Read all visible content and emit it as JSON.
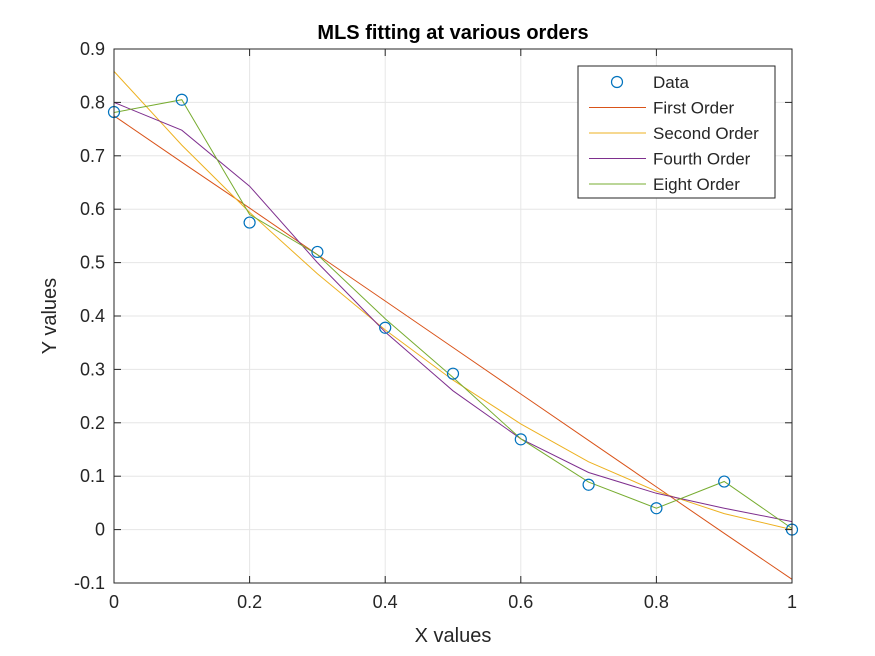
{
  "chart_data": {
    "type": "line",
    "title": "MLS fitting at various orders",
    "xlabel": "X values",
    "ylabel": "Y values",
    "xlim": [
      0,
      1
    ],
    "ylim": [
      -0.1,
      0.9
    ],
    "grid": true,
    "legend_position": "top-right",
    "x_ticks": [
      "0",
      "0.2",
      "0.4",
      "0.6",
      "0.8",
      "1"
    ],
    "y_ticks": [
      "-0.1",
      "0",
      "0.1",
      "0.2",
      "0.3",
      "0.4",
      "0.5",
      "0.6",
      "0.7",
      "0.8",
      "0.9"
    ],
    "x": [
      0,
      0.1,
      0.2,
      0.3,
      0.4,
      0.5,
      0.6,
      0.7,
      0.8,
      0.9,
      1.0
    ],
    "series": [
      {
        "name": "Data",
        "style": "markers",
        "color": "#0072BD",
        "values": [
          0.782,
          0.805,
          0.575,
          0.52,
          0.378,
          0.292,
          0.169,
          0.084,
          0.04,
          0.09,
          0.0
        ]
      },
      {
        "name": "First Order",
        "style": "line",
        "color": "#D95319",
        "values": [
          0.775,
          0.688,
          0.602,
          0.515,
          0.428,
          0.341,
          0.254,
          0.167,
          0.08,
          -0.007,
          -0.093
        ]
      },
      {
        "name": "Second Order",
        "style": "line",
        "color": "#EDB120",
        "values": [
          0.858,
          0.72,
          0.594,
          0.479,
          0.374,
          0.28,
          0.198,
          0.127,
          0.072,
          0.03,
          0.0
        ]
      },
      {
        "name": "Fourth Order",
        "style": "line",
        "color": "#7E2F8E",
        "values": [
          0.8,
          0.748,
          0.643,
          0.5,
          0.37,
          0.26,
          0.17,
          0.107,
          0.068,
          0.04,
          0.015
        ]
      },
      {
        "name": "Eight Order",
        "style": "line",
        "color": "#77AC30",
        "values": [
          0.781,
          0.805,
          0.59,
          0.515,
          0.395,
          0.285,
          0.17,
          0.089,
          0.04,
          0.09,
          0.002
        ]
      }
    ]
  }
}
